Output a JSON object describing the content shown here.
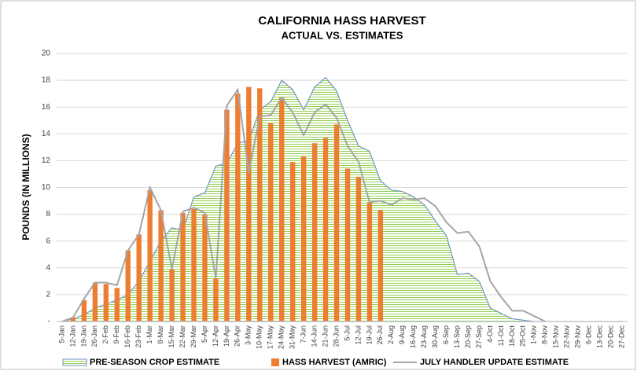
{
  "chart_data": {
    "type": "combo",
    "title": "CALIFORNIA HASS HARVEST",
    "subtitle": "ACTUAL VS. ESTIMATES",
    "y_label": "POUNDS  (IN MILLIONS)",
    "categories": [
      "5-Jan",
      "12-Jan",
      "19-Jan",
      "26-Jan",
      "2-Feb",
      "9-Feb",
      "16-Feb",
      "23-Feb",
      "1-Mar",
      "8-Mar",
      "15-Mar",
      "22-Mar",
      "29-Mar",
      "5-Apr",
      "12-Apr",
      "19-Apr",
      "26-Apr",
      "3-May",
      "10-May",
      "17-May",
      "24-May",
      "31-May",
      "7-Jun",
      "14-Jun",
      "21-Jun",
      "28-Jun",
      "5-Jul",
      "12-Jul",
      "19-Jul",
      "26-Jul",
      "2-Aug",
      "9-Aug",
      "16-Aug",
      "23-Aug",
      "30-Aug",
      "6-Sep",
      "13-Sep",
      "20-Sep",
      "27-Sep",
      "4-Oct",
      "11-Oct",
      "18-Oct",
      "25-Oct",
      "1-Nov",
      "8-Nov",
      "15-Nov",
      "22-Nov",
      "29-Nov",
      "6-Dec",
      "13-Dec",
      "20-Dec",
      "27-Dec"
    ],
    "series": [
      {
        "name": "PRE-SEASON CROP ESTIMATE",
        "kind": "area",
        "color": "#7196c0",
        "fill": "#92d050",
        "values": [
          0,
          0.2,
          0.5,
          1.0,
          1.3,
          1.6,
          2.0,
          3.0,
          4.5,
          6.0,
          7.0,
          6.8,
          9.3,
          9.6,
          11.6,
          11.8,
          13.3,
          13.5,
          15.8,
          16.4,
          18.0,
          17.3,
          15.8,
          17.5,
          18.2,
          17.2,
          15.0,
          13.1,
          12.7,
          10.5,
          9.8,
          9.7,
          9.3,
          8.7,
          7.5,
          6.4,
          3.5,
          3.6,
          3.0,
          1.0,
          0.6,
          0.2,
          0.1,
          0,
          0,
          0,
          0,
          0,
          0,
          0,
          0,
          0
        ]
      },
      {
        "name": "HASS HARVEST (AMRIC)",
        "kind": "bar",
        "color": "#ed7d31",
        "values": [
          0,
          0.3,
          1.6,
          2.9,
          2.8,
          2.5,
          5.3,
          6.5,
          9.8,
          8.3,
          3.9,
          8.1,
          8.4,
          8.0,
          3.2,
          15.8,
          17.0,
          17.5,
          17.4,
          14.8,
          16.7,
          11.9,
          12.3,
          13.3,
          13.7,
          14.7,
          11.4,
          10.8,
          8.9,
          8.3,
          null,
          null,
          null,
          null,
          null,
          null,
          null,
          null,
          null,
          null,
          null,
          null,
          null,
          null,
          null,
          null,
          null,
          null,
          null,
          null,
          null,
          null
        ]
      },
      {
        "name": "JULY HANDLER UPDATE ESTIMATE",
        "kind": "line",
        "color": "#a5a5a5",
        "values": [
          0,
          0.3,
          1.7,
          2.9,
          2.9,
          2.7,
          5.3,
          6.5,
          10.0,
          8.3,
          3.9,
          8.2,
          8.5,
          8.1,
          3.2,
          16.1,
          17.3,
          11.1,
          15.3,
          15.4,
          16.7,
          15.6,
          13.9,
          15.6,
          16.2,
          15.2,
          13.1,
          11.9,
          8.9,
          9.0,
          8.7,
          9.2,
          9.1,
          9.2,
          8.6,
          7.4,
          6.6,
          6.7,
          5.6,
          3.0,
          1.8,
          0.8,
          0.8,
          0.4,
          0,
          null,
          null,
          null,
          null,
          null,
          null,
          null
        ]
      }
    ],
    "ylim": [
      0,
      20
    ],
    "yticks": [
      {
        "value": 0,
        "label": "-"
      },
      2,
      4,
      6,
      8,
      10,
      12,
      14,
      16,
      18,
      20
    ],
    "grid": true,
    "legend": "bottom"
  }
}
